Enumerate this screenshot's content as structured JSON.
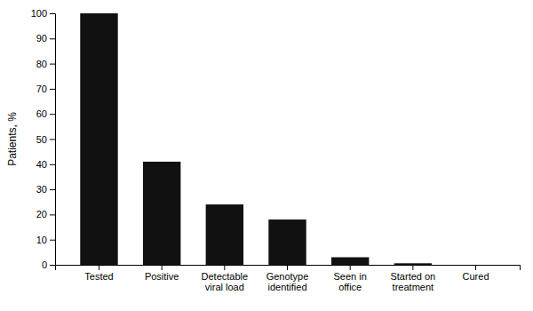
{
  "chart_data": {
    "type": "bar",
    "categories": [
      "Tested",
      "Positive",
      "Detectable\nviral load",
      "Genotype\nidentified",
      "Seen in\noffice",
      "Started on\ntreatment",
      "Cured"
    ],
    "values": [
      100,
      41,
      24,
      18,
      3,
      0.6,
      0
    ],
    "color": "#111111",
    "ylabel": "Patients, %",
    "ylim": [
      0,
      100
    ],
    "yticks": [
      0,
      10,
      20,
      30,
      40,
      50,
      60,
      70,
      80,
      90,
      100
    ],
    "grid": false
  }
}
